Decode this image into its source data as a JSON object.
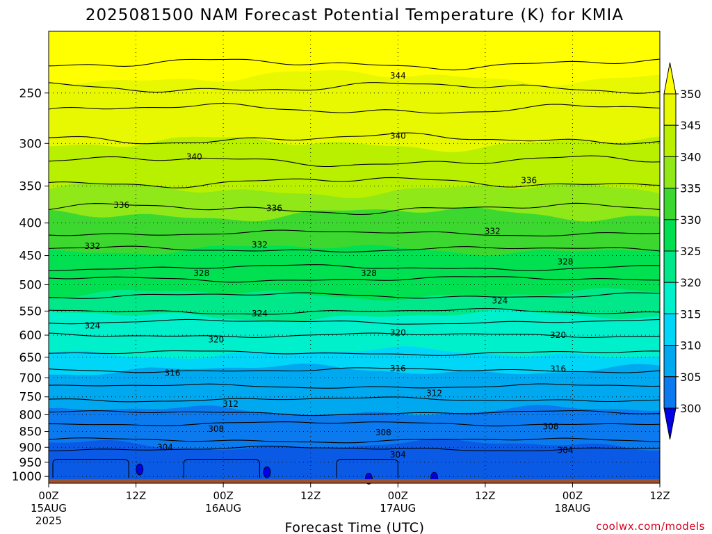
{
  "title": "2025081500 NAM Forecast Potential Temperature (K) for KMIA",
  "credit": "coolwx.com/models",
  "colors": {
    "ground": "#a0522d",
    "fills": [
      "#0000e6",
      "#0a5ae6",
      "#0a7aee",
      "#00a8f0",
      "#00d6f8",
      "#00f0cc",
      "#00e88a",
      "#00e050",
      "#3cd830",
      "#90e818",
      "#b8f000",
      "#e8f800",
      "#ffff00"
    ]
  },
  "chart_data": {
    "type": "contour",
    "title": "2025081500 NAM Forecast Potential Temperature (K) for KMIA",
    "xlabel": "Forecast Time (UTC)",
    "ylabel": "",
    "x_ticks": [
      {
        "top": "00Z",
        "mid": "15AUG",
        "bot": "2025"
      },
      {
        "top": "12Z",
        "mid": "",
        "bot": ""
      },
      {
        "top": "00Z",
        "mid": "16AUG",
        "bot": ""
      },
      {
        "top": "12Z",
        "mid": "",
        "bot": ""
      },
      {
        "top": "00Z",
        "mid": "17AUG",
        "bot": ""
      },
      {
        "top": "12Z",
        "mid": "",
        "bot": ""
      },
      {
        "top": "00Z",
        "mid": "18AUG",
        "bot": ""
      },
      {
        "top": "12Z",
        "mid": "",
        "bot": ""
      }
    ],
    "x_range_hours": [
      0,
      84
    ],
    "y_ticks": [
      "250",
      "300",
      "350",
      "400",
      "450",
      "500",
      "550",
      "600",
      "650",
      "700",
      "750",
      "800",
      "850",
      "900",
      "950",
      "1000"
    ],
    "y_tick_values": [
      250,
      300,
      350,
      400,
      450,
      500,
      550,
      600,
      650,
      700,
      750,
      800,
      850,
      900,
      950,
      1000
    ],
    "y_range_hpa": [
      200,
      1025
    ],
    "y_scale": "log-pressure",
    "grid": true,
    "colorbar": {
      "levels": [
        "300",
        "305",
        "310",
        "315",
        "320",
        "325",
        "330",
        "335",
        "340",
        "345",
        "350"
      ],
      "colors": [
        "#0000e6",
        "#0a5ae6",
        "#0a7aee",
        "#00a8f0",
        "#00d6f8",
        "#00f0cc",
        "#00e88a",
        "#00e050",
        "#3cd830",
        "#90e818",
        "#b8f000",
        "#e8f800",
        "#ffff00"
      ]
    },
    "band_boundaries_hpa": {
      "345": 236,
      "340": 387,
      "335": 387,
      "330": 387,
      "325": 518,
      "320": 560,
      "315": 680,
      "310": 700,
      "305": 893
    },
    "contours": [
      {
        "theta": 304,
        "p_hpa": 905
      },
      {
        "theta": 306,
        "p_hpa": 878
      },
      {
        "theta": 308,
        "p_hpa": 826
      },
      {
        "theta": 310,
        "p_hpa": 795
      },
      {
        "theta": 312,
        "p_hpa": 757
      },
      {
        "theta": 314,
        "p_hpa": 722
      },
      {
        "theta": 316,
        "p_hpa": 681
      },
      {
        "theta": 318,
        "p_hpa": 640
      },
      {
        "theta": 320,
        "p_hpa": 600
      },
      {
        "theta": 322,
        "p_hpa": 572
      },
      {
        "theta": 324,
        "p_hpa": 551
      },
      {
        "theta": 326,
        "p_hpa": 520
      },
      {
        "theta": 328,
        "p_hpa": 490
      },
      {
        "theta": 330,
        "p_hpa": 470
      },
      {
        "theta": 332,
        "p_hpa": 440
      },
      {
        "theta": 334,
        "p_hpa": 415
      },
      {
        "theta": 336,
        "p_hpa": 380
      },
      {
        "theta": 338,
        "p_hpa": 345
      },
      {
        "theta": 340,
        "p_hpa": 320
      },
      {
        "theta": 342,
        "p_hpa": 295
      },
      {
        "theta": 344,
        "p_hpa": 265
      },
      {
        "theta": 346,
        "p_hpa": 245
      },
      {
        "theta": 348,
        "p_hpa": 225
      }
    ],
    "contour_labels": [
      {
        "text": "344",
        "hour": 48,
        "p_hpa": 235
      },
      {
        "text": "340",
        "hour": 20,
        "p_hpa": 315
      },
      {
        "text": "340",
        "hour": 48,
        "p_hpa": 292
      },
      {
        "text": "336",
        "hour": 10,
        "p_hpa": 375
      },
      {
        "text": "336",
        "hour": 31,
        "p_hpa": 379
      },
      {
        "text": "336",
        "hour": 66,
        "p_hpa": 343
      },
      {
        "text": "332",
        "hour": 6,
        "p_hpa": 435
      },
      {
        "text": "332",
        "hour": 29,
        "p_hpa": 433
      },
      {
        "text": "332",
        "hour": 61,
        "p_hpa": 412
      },
      {
        "text": "328",
        "hour": 21,
        "p_hpa": 480
      },
      {
        "text": "328",
        "hour": 44,
        "p_hpa": 480
      },
      {
        "text": "328",
        "hour": 71,
        "p_hpa": 460
      },
      {
        "text": "324",
        "hour": 6,
        "p_hpa": 580
      },
      {
        "text": "324",
        "hour": 29,
        "p_hpa": 555
      },
      {
        "text": "324",
        "hour": 62,
        "p_hpa": 530
      },
      {
        "text": "320",
        "hour": 23,
        "p_hpa": 610
      },
      {
        "text": "320",
        "hour": 48,
        "p_hpa": 595
      },
      {
        "text": "320",
        "hour": 70,
        "p_hpa": 600
      },
      {
        "text": "316",
        "hour": 17,
        "p_hpa": 688
      },
      {
        "text": "316",
        "hour": 48,
        "p_hpa": 677
      },
      {
        "text": "316",
        "hour": 70,
        "p_hpa": 678
      },
      {
        "text": "312",
        "hour": 25,
        "p_hpa": 770
      },
      {
        "text": "312",
        "hour": 53,
        "p_hpa": 740
      },
      {
        "text": "308",
        "hour": 23,
        "p_hpa": 842
      },
      {
        "text": "308",
        "hour": 46,
        "p_hpa": 853
      },
      {
        "text": "308",
        "hour": 69,
        "p_hpa": 835
      },
      {
        "text": "304",
        "hour": 16,
        "p_hpa": 900
      },
      {
        "text": "304",
        "hour": 48,
        "p_hpa": 925
      },
      {
        "text": "304",
        "hour": 71,
        "p_hpa": 910
      }
    ],
    "surface_p_hpa": 1010
  }
}
